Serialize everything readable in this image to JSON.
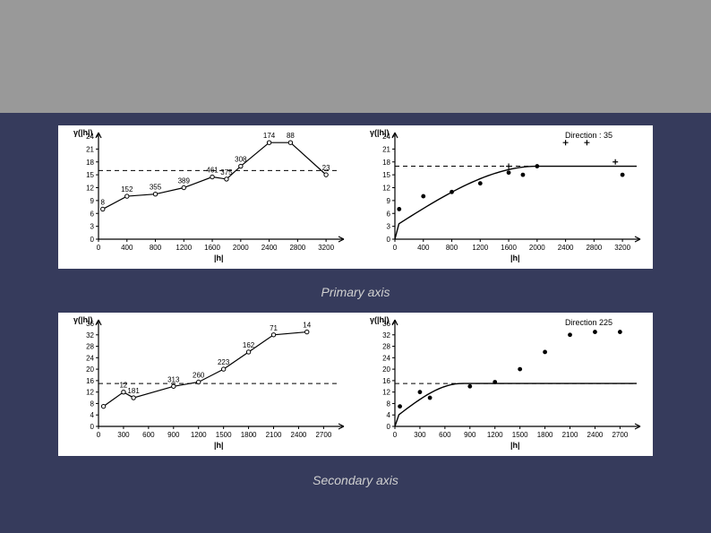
{
  "captions": {
    "primary": "Primary axis",
    "secondary": "Secondary axis"
  },
  "colors": {
    "page_top": "#999999",
    "page_main": "#363b5c",
    "panel_bg": "#ffffff",
    "ink": "#000000",
    "caption_text": "#d0d0d0"
  },
  "y_axis_label": "γ(|h|)",
  "x_axis_label": "|h|",
  "charts": {
    "top_left": {
      "type": "variogram-line",
      "ylim": [
        0,
        24
      ],
      "ytick_step": 3,
      "xlim": [
        0,
        3400
      ],
      "xtick_step": 400,
      "xtick_stop": 3200,
      "sill": 16,
      "points": [
        {
          "x": 60,
          "y": 7,
          "lbl": "8"
        },
        {
          "x": 400,
          "y": 10,
          "lbl": "152"
        },
        {
          "x": 800,
          "y": 10.5,
          "lbl": "355"
        },
        {
          "x": 1200,
          "y": 12,
          "lbl": "389"
        },
        {
          "x": 1600,
          "y": 14.5,
          "lbl": "461"
        },
        {
          "x": 1800,
          "y": 14,
          "lbl": "375"
        },
        {
          "x": 2000,
          "y": 17,
          "lbl": "308"
        },
        {
          "x": 2400,
          "y": 22.5,
          "lbl": "174"
        },
        {
          "x": 2700,
          "y": 22.5,
          "lbl": "88"
        },
        {
          "x": 3200,
          "y": 15,
          "lbl": "23"
        }
      ],
      "connect": true
    },
    "top_right": {
      "type": "variogram-model",
      "direction_label": "Direction : 35",
      "ylim": [
        0,
        24
      ],
      "ytick_step": 3,
      "xlim": [
        0,
        3400
      ],
      "xtick_step": 400,
      "xtick_stop": 3200,
      "sill": 17,
      "model": {
        "range": 2000,
        "nugget": 3,
        "sill_val": 17,
        "type": "spherical"
      },
      "points_round": [
        {
          "x": 60,
          "y": 7
        },
        {
          "x": 400,
          "y": 10
        },
        {
          "x": 800,
          "y": 11
        },
        {
          "x": 1200,
          "y": 13
        },
        {
          "x": 1600,
          "y": 15.5
        },
        {
          "x": 1800,
          "y": 15
        },
        {
          "x": 2000,
          "y": 17
        },
        {
          "x": 3200,
          "y": 15
        }
      ],
      "points_plus": [
        {
          "x": 1600,
          "y": 17
        },
        {
          "x": 2400,
          "y": 22.5
        },
        {
          "x": 2700,
          "y": 22.5
        },
        {
          "x": 3100,
          "y": 18
        }
      ]
    },
    "bot_left": {
      "type": "variogram-line",
      "ylim": [
        0,
        36
      ],
      "ytick_step": 4,
      "xlim": [
        0,
        2900
      ],
      "xtick_step": 300,
      "xtick_stop": 2700,
      "sill": 15,
      "points": [
        {
          "x": 60,
          "y": 7,
          "lbl": ""
        },
        {
          "x": 300,
          "y": 12,
          "lbl": "12"
        },
        {
          "x": 420,
          "y": 10,
          "lbl": "181"
        },
        {
          "x": 900,
          "y": 14,
          "lbl": "313"
        },
        {
          "x": 1200,
          "y": 15.5,
          "lbl": "260"
        },
        {
          "x": 1500,
          "y": 20,
          "lbl": "223"
        },
        {
          "x": 1800,
          "y": 26,
          "lbl": "162"
        },
        {
          "x": 2100,
          "y": 32,
          "lbl": "71"
        },
        {
          "x": 2500,
          "y": 33,
          "lbl": "14"
        }
      ],
      "connect": true
    },
    "bot_right": {
      "type": "variogram-model",
      "direction_label": "Direction 225",
      "ylim": [
        0,
        36
      ],
      "ytick_step": 4,
      "xlim": [
        0,
        2900
      ],
      "xtick_step": 300,
      "xtick_stop": 2700,
      "sill": 15,
      "model": {
        "range": 800,
        "nugget": 3,
        "sill_val": 15,
        "type": "spherical"
      },
      "points_round": [
        {
          "x": 60,
          "y": 7
        },
        {
          "x": 300,
          "y": 12
        },
        {
          "x": 420,
          "y": 10
        },
        {
          "x": 900,
          "y": 14
        },
        {
          "x": 1200,
          "y": 15.5
        },
        {
          "x": 1500,
          "y": 20
        },
        {
          "x": 1800,
          "y": 26
        },
        {
          "x": 2100,
          "y": 32
        },
        {
          "x": 2400,
          "y": 33
        },
        {
          "x": 2700,
          "y": 33
        }
      ],
      "points_plus": []
    }
  },
  "chart_style": {
    "label_fontsize": 8,
    "axis_color": "#000000",
    "dash_pattern": "5 4",
    "marker_radius": 2.2,
    "line_width": 1.2
  }
}
